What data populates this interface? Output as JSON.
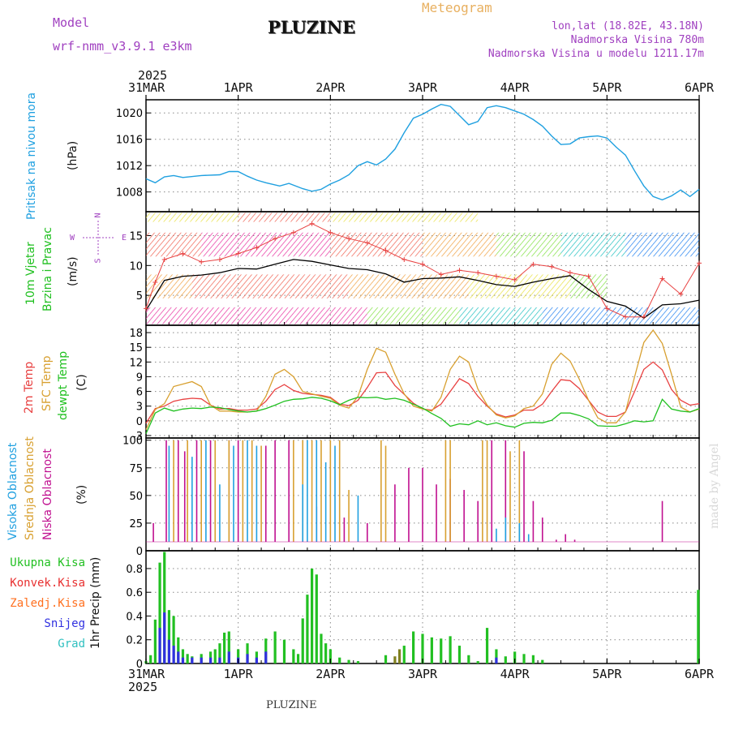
{
  "header": {
    "model_label": "Model",
    "model_name": "wrf-nmm_v3.9.1 e3km",
    "title": "PLUZINE",
    "meteogram_label": "Meteogram",
    "coords": "lon,lat (18.82E, 43.18N)",
    "altitude": "Nadmorska Visina 780m",
    "altitude_model": "Nadmorska Visina u modelu 1211.17m",
    "footer_name": "PLUZINE",
    "credit": "made by Angel"
  },
  "colors": {
    "pressure": "#1fa0e0",
    "temp2m": "#e84040",
    "sfc": "#d8a030",
    "dewpt": "#20c020",
    "high_cloud": "#20a0e0",
    "mid_cloud": "#d8a030",
    "low_cloud": "#c01090",
    "total_precip": "#22c022",
    "convective": "#e83030",
    "frozen": "#ff7020",
    "snow": "#3030e0",
    "graupel": "#30c0c0"
  },
  "chart_data": [
    {
      "type": "line",
      "name": "pressure",
      "ylabel_title": "Pritisak na nivou mora",
      "ylabel_unit": "(hPa)",
      "ylim": [
        1005,
        1022
      ],
      "yticks": [
        1008,
        1012,
        1016,
        1020
      ],
      "grid": true,
      "top_year": "2025",
      "top_ticks": [
        "31MAR",
        "1APR",
        "2APR",
        "3APR",
        "4APR",
        "5APR",
        "6APR"
      ],
      "t": [
        0,
        0.1,
        0.2,
        0.3,
        0.4,
        0.6,
        0.8,
        0.9,
        1.0,
        1.1,
        1.2,
        1.3,
        1.45,
        1.55,
        1.7,
        1.8,
        1.9,
        2.0,
        2.1,
        2.2,
        2.3,
        2.4,
        2.5,
        2.6,
        2.7,
        2.8,
        2.9,
        3.0,
        3.1,
        3.2,
        3.3,
        3.4,
        3.5,
        3.6,
        3.7,
        3.8,
        3.9,
        4.0,
        4.1,
        4.2,
        4.3,
        4.4,
        4.5,
        4.6,
        4.7,
        4.8,
        4.9,
        5.0,
        5.1,
        5.2,
        5.3,
        5.4,
        5.5,
        5.6,
        5.7,
        5.8,
        5.9,
        6.0
      ],
      "values": [
        1010,
        1009.4,
        1010.3,
        1010.5,
        1010.2,
        1010.5,
        1010.6,
        1011.1,
        1011.1,
        1010.4,
        1009.8,
        1009.4,
        1008.9,
        1009.3,
        1008.5,
        1008.1,
        1008.4,
        1009.2,
        1009.8,
        1010.6,
        1012.0,
        1012.6,
        1012.1,
        1013.0,
        1014.5,
        1017.0,
        1019.2,
        1019.8,
        1020.6,
        1021.3,
        1021.0,
        1019.6,
        1018.2,
        1018.7,
        1020.8,
        1021.1,
        1020.8,
        1020.3,
        1019.8,
        1019.0,
        1018.0,
        1016.5,
        1015.2,
        1015.3,
        1016.2,
        1016.4,
        1016.5,
        1016.2,
        1014.8,
        1013.6,
        1011.2,
        1008.9,
        1007.3,
        1006.8,
        1007.4,
        1008.3,
        1007.3,
        1008.4
      ]
    },
    {
      "type": "line",
      "name": "wind",
      "ylabel_title": "10m Vjetar",
      "ylabel_sub": "Brzina i Pravac",
      "ylabel_unit": "(m/s)",
      "compass": {
        "n": "N",
        "s": "S",
        "w": "W",
        "e": "E"
      },
      "ylim": [
        0,
        19
      ],
      "yticks": [
        5,
        10,
        15
      ],
      "grid": true,
      "t": [
        0,
        0.1,
        0.2,
        0.4,
        0.6,
        0.8,
        1.0,
        1.2,
        1.4,
        1.6,
        1.8,
        2.0,
        2.2,
        2.4,
        2.6,
        2.8,
        3.0,
        3.2,
        3.4,
        3.6,
        3.8,
        4.0,
        4.2,
        4.4,
        4.6,
        4.8,
        5.0,
        5.2,
        5.4,
        5.6,
        5.8,
        6.0
      ],
      "series": [
        {
          "name": "sustained",
          "color": "#000000",
          "values": [
            2.5,
            5,
            7.5,
            8.2,
            8.4,
            8.8,
            9.5,
            9.4,
            10.2,
            11,
            10.7,
            10.1,
            9.5,
            9.3,
            8.6,
            7.2,
            7.8,
            7.9,
            8.1,
            7.5,
            6.8,
            6.5,
            7.2,
            7.8,
            8.3,
            6.0,
            4.0,
            3.2,
            1.2,
            3.4,
            3.6,
            4.2
          ]
        },
        {
          "name": "gust",
          "color": "#e84040",
          "values": [
            2.8,
            7.2,
            11,
            12,
            10.6,
            11,
            12,
            13,
            14.5,
            15.5,
            17,
            15.5,
            14.5,
            13.8,
            12.5,
            11,
            10.2,
            8.5,
            9.2,
            8.8,
            8.2,
            7.6,
            10.2,
            9.8,
            8.8,
            8.2,
            2.8,
            1.4,
            1.4,
            7.8,
            5.2,
            10.4
          ]
        }
      ]
    },
    {
      "type": "line",
      "name": "temperature",
      "ylabel_labels": [
        "2m Temp",
        "SFC Temp",
        "dewpt Temp"
      ],
      "ylabel_unit": "(C)",
      "ylim": [
        -3.5,
        19.5
      ],
      "yticks": [
        -3,
        0,
        3,
        6,
        9,
        12,
        15,
        18
      ],
      "grid": true,
      "t": [
        0,
        0.1,
        0.2,
        0.3,
        0.4,
        0.5,
        0.6,
        0.7,
        0.8,
        0.9,
        1.0,
        1.1,
        1.2,
        1.3,
        1.4,
        1.5,
        1.6,
        1.7,
        1.8,
        1.9,
        2.0,
        2.1,
        2.2,
        2.3,
        2.4,
        2.5,
        2.6,
        2.7,
        2.8,
        2.9,
        3.0,
        3.1,
        3.2,
        3.3,
        3.4,
        3.5,
        3.6,
        3.7,
        3.8,
        3.9,
        4.0,
        4.1,
        4.2,
        4.3,
        4.4,
        4.5,
        4.6,
        4.7,
        4.8,
        4.9,
        5.0,
        5.1,
        5.2,
        5.3,
        5.4,
        5.5,
        5.6,
        5.7,
        5.8,
        5.9,
        6.0
      ],
      "series": [
        {
          "name": "2m Temp",
          "color": "#e84040",
          "values": [
            -0.5,
            2.5,
            3.0,
            4.0,
            4.4,
            4.6,
            4.5,
            3.2,
            2.4,
            2.5,
            2.2,
            2.2,
            2.4,
            4.0,
            6.4,
            7.4,
            6.2,
            5.6,
            5.4,
            5.2,
            4.8,
            3.4,
            3.1,
            4.2,
            6.8,
            9.8,
            9.9,
            7.2,
            5.4,
            3.6,
            2.4,
            2.2,
            3.4,
            6.0,
            8.6,
            7.6,
            5.0,
            3.0,
            1.4,
            0.8,
            1.2,
            2.2,
            2.2,
            3.4,
            6.0,
            8.4,
            8.2,
            6.6,
            4.2,
            1.8,
            0.9,
            0.9,
            1.8,
            6.0,
            10.5,
            12.0,
            10.4,
            6.4,
            4.2,
            3.2,
            3.5
          ]
        },
        {
          "name": "SFC Temp",
          "color": "#d8a030",
          "values": [
            -1.8,
            2.3,
            3.5,
            7.0,
            7.5,
            8.0,
            7.0,
            3.2,
            2.0,
            2.0,
            1.8,
            1.8,
            2.0,
            5.0,
            9.5,
            10.5,
            9.0,
            6.0,
            5.5,
            5.0,
            4.6,
            3.2,
            2.6,
            5.0,
            10.5,
            14.8,
            14.0,
            9.5,
            5.5,
            3.0,
            2.4,
            2.0,
            4.8,
            10.5,
            13.2,
            12.0,
            6.5,
            3.2,
            1.2,
            0.6,
            1.0,
            2.5,
            3.0,
            5.5,
            11.5,
            13.8,
            12.2,
            8.5,
            4.2,
            0.6,
            -0.4,
            -0.4,
            1.8,
            9.0,
            16.0,
            18.5,
            15.8,
            9.5,
            2.8,
            1.8,
            2.4
          ]
        },
        {
          "name": "dewpt Temp",
          "color": "#20c020",
          "values": [
            -2.6,
            1.6,
            2.6,
            2.0,
            2.4,
            2.6,
            2.5,
            2.8,
            2.7,
            2.3,
            2.0,
            1.8,
            2.0,
            2.5,
            3.2,
            4.0,
            4.4,
            4.5,
            4.8,
            4.6,
            4.1,
            3.3,
            4.2,
            4.8,
            4.7,
            4.8,
            4.4,
            4.6,
            4.2,
            3.4,
            2.6,
            1.5,
            0.5,
            -1.1,
            -0.6,
            -0.8,
            0.0,
            -0.8,
            -0.4,
            -1.0,
            -1.3,
            -0.5,
            -0.3,
            -0.4,
            0.1,
            1.6,
            1.6,
            1.1,
            0.4,
            -1.0,
            -1.1,
            -1.1,
            -0.6,
            0.0,
            -0.2,
            0.0,
            4.4,
            2.4,
            2.0,
            1.8,
            2.5
          ]
        }
      ]
    },
    {
      "type": "bar",
      "name": "cloud",
      "ylabel_labels": [
        "Visoka Oblacnost",
        "Srednja Oblacnost",
        "Niska Oblacnost"
      ],
      "ylabel_unit": "(%)",
      "ylim": [
        0,
        102
      ],
      "yticks": [
        0,
        25,
        50,
        75,
        100
      ],
      "grid": true,
      "series": [
        {
          "name": "Niska Oblacnost",
          "color": "#c01090",
          "t": [
            0.08,
            0.22,
            0.35,
            0.42,
            0.55,
            0.7,
            0.9,
            1.0,
            1.3,
            1.4,
            1.55,
            1.85,
            2.15,
            2.4,
            2.7,
            2.85,
            3.0,
            3.15,
            3.3,
            3.45,
            3.6,
            3.75,
            3.9,
            4.1,
            4.2,
            4.3,
            4.45,
            4.55,
            4.65,
            5.6
          ],
          "values": [
            25,
            100,
            100,
            90,
            100,
            100,
            100,
            100,
            95,
            100,
            100,
            40,
            30,
            25,
            60,
            75,
            75,
            60,
            65,
            55,
            45,
            100,
            100,
            90,
            45,
            30,
            10,
            15,
            10,
            45
          ]
        },
        {
          "name": "Srednja Oblacnost",
          "color": "#d8a030",
          "t": [
            0.3,
            0.45,
            0.6,
            0.75,
            0.9,
            1.05,
            1.15,
            1.25,
            1.6,
            1.7,
            1.8,
            1.9,
            2.0,
            2.1,
            2.2,
            2.55,
            2.6,
            3.25,
            3.3,
            3.65,
            3.7,
            3.95,
            4.05
          ],
          "values": [
            100,
            100,
            100,
            100,
            100,
            100,
            100,
            95,
            100,
            100,
            100,
            100,
            100,
            100,
            55,
            100,
            95,
            100,
            100,
            100,
            100,
            90,
            100
          ]
        },
        {
          "name": "Visoka Oblacnost",
          "color": "#20a0e0",
          "t": [
            0.25,
            0.5,
            0.65,
            0.8,
            0.95,
            1.1,
            1.2,
            1.7,
            1.75,
            1.85,
            1.95,
            2.05,
            2.3,
            3.8,
            3.9,
            4.05,
            4.15
          ],
          "values": [
            95,
            85,
            100,
            60,
            95,
            100,
            95,
            60,
            100,
            100,
            80,
            95,
            50,
            20,
            30,
            25,
            15
          ]
        }
      ]
    },
    {
      "type": "bar",
      "name": "precipitation",
      "ylabel_labels": [
        "Ukupna Kisa",
        "Konvek.Kisa",
        "Zaledj.Kisa",
        "Snijeg",
        "Grad"
      ],
      "ylabel_unit": "1hr Precip (mm)",
      "ylim": [
        0,
        0.95
      ],
      "yticks": [
        0,
        0.2,
        0.4,
        0.6,
        0.8
      ],
      "grid": true,
      "bottom_year": "2025",
      "bottom_ticks": [
        "31MAR",
        "1APR",
        "2APR",
        "3APR",
        "4APR",
        "5APR",
        "6APR"
      ],
      "series": [
        {
          "name": "Ukupna Kisa",
          "color": "#22c022",
          "t": [
            0.0,
            0.05,
            0.1,
            0.15,
            0.2,
            0.25,
            0.3,
            0.35,
            0.4,
            0.45,
            0.5,
            0.6,
            0.7,
            0.75,
            0.8,
            0.85,
            0.9,
            1.0,
            1.1,
            1.2,
            1.3,
            1.4,
            1.5,
            1.6,
            1.65,
            1.7,
            1.75,
            1.8,
            1.85,
            1.9,
            1.95,
            2.0,
            2.1,
            2.2,
            2.3,
            2.6,
            2.8,
            2.9,
            3.0,
            3.1,
            3.2,
            3.3,
            3.4,
            3.5,
            3.6,
            3.7,
            3.8,
            3.9,
            4.0,
            4.1,
            4.2,
            4.3,
            5.99
          ],
          "values": [
            0.02,
            0.07,
            0.37,
            0.85,
            0.94,
            0.45,
            0.4,
            0.22,
            0.12,
            0.08,
            0.06,
            0.08,
            0.1,
            0.12,
            0.17,
            0.26,
            0.27,
            0.12,
            0.17,
            0.1,
            0.21,
            0.27,
            0.2,
            0.12,
            0.08,
            0.38,
            0.58,
            0.8,
            0.75,
            0.25,
            0.17,
            0.12,
            0.05,
            0.03,
            0.02,
            0.07,
            0.15,
            0.27,
            0.25,
            0.22,
            0.21,
            0.23,
            0.15,
            0.07,
            0.02,
            0.3,
            0.12,
            0.06,
            0.1,
            0.08,
            0.07,
            0.03,
            0.62
          ]
        },
        {
          "name": "Snijeg",
          "color": "#3030e0",
          "t": [
            0.15,
            0.2,
            0.25,
            0.3,
            0.35,
            0.4,
            0.5,
            0.6,
            0.7,
            0.8,
            0.9,
            1.0,
            1.1,
            1.2,
            1.3,
            3.8
          ],
          "values": [
            0.3,
            0.43,
            0.2,
            0.15,
            0.1,
            0.05,
            0.05,
            0.05,
            0.05,
            0.05,
            0.1,
            0.05,
            0.08,
            0.05,
            0.1,
            0.05
          ]
        },
        {
          "name": "Zaledj.Kisa",
          "color": "#808020",
          "t": [
            2.7,
            2.75
          ],
          "values": [
            0.06,
            0.12
          ]
        }
      ]
    }
  ]
}
